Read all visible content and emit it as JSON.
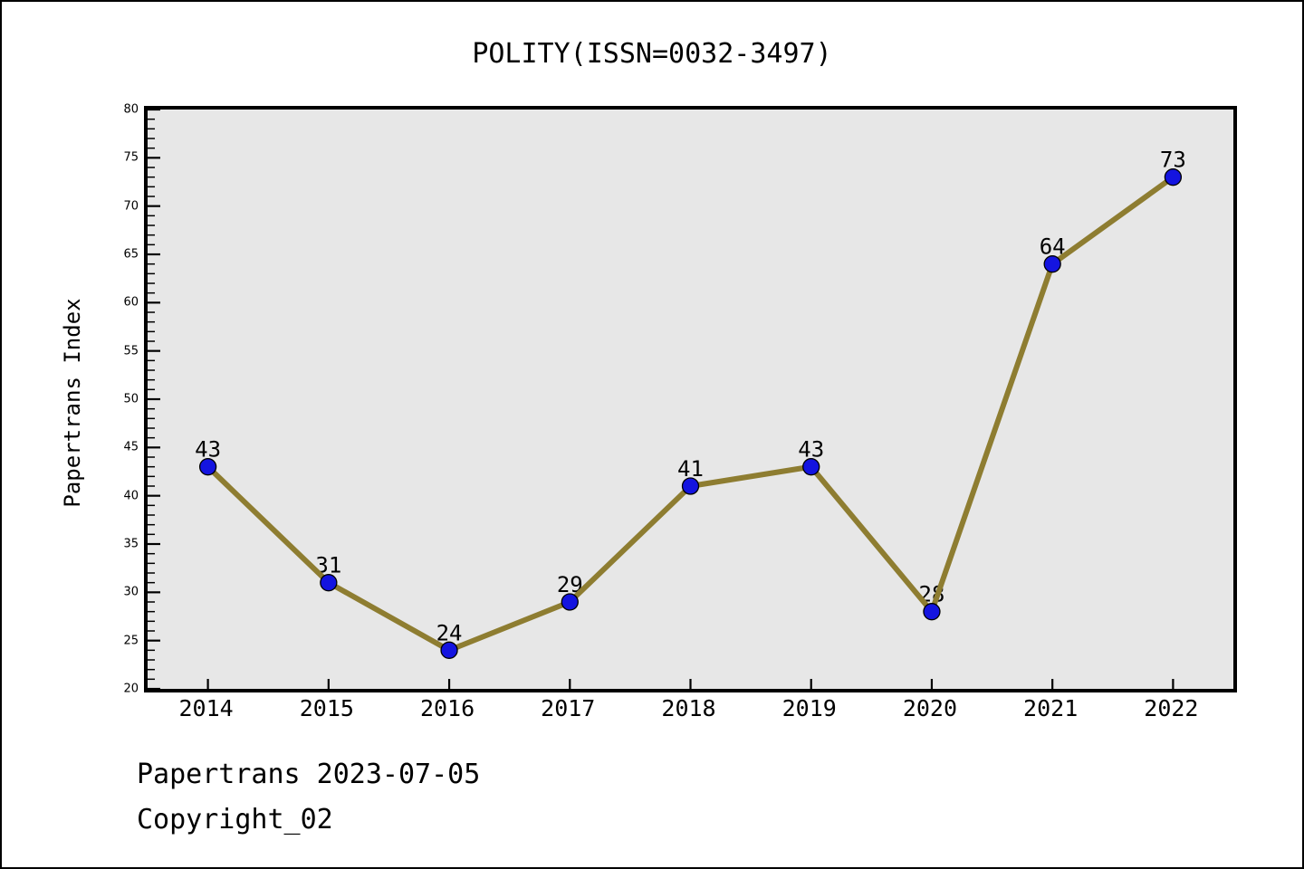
{
  "figure": {
    "footer_line1": "Papertrans 2023-07-05",
    "footer_line2": "Copyright_02"
  },
  "chart_data": {
    "type": "line",
    "title": "POLITY(ISSN=0032-3497)",
    "xlabel": "",
    "ylabel": "Papertrans Index",
    "categories": [
      "2014",
      "2015",
      "2016",
      "2017",
      "2018",
      "2019",
      "2020",
      "2021",
      "2022"
    ],
    "values": [
      43,
      31,
      24,
      29,
      41,
      43,
      28,
      64,
      73
    ],
    "data_labels": [
      "43",
      "31",
      "24",
      "29",
      "41",
      "43",
      "28",
      "64",
      "73"
    ],
    "series_name": "Papertrans Index",
    "ylim": [
      20,
      80
    ],
    "y_major_step": 5,
    "y_minor_step": 1,
    "grid": false,
    "legend": null,
    "colors": {
      "line": "#8E7D31",
      "marker_fill": "#1414E0",
      "marker_edge": "#000000",
      "plot_background": "#E7E7E7",
      "page_background": "#FFFFFF",
      "frame": "#000000",
      "text": "#000000"
    }
  }
}
